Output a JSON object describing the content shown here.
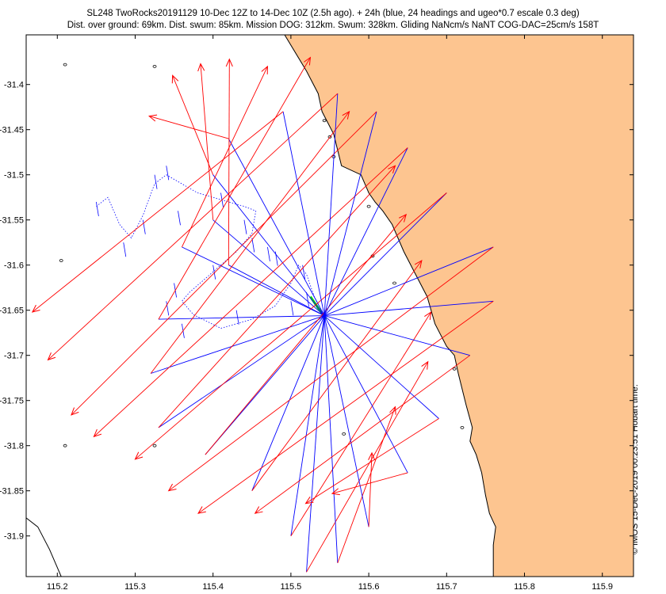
{
  "chart_data": {
    "type": "map",
    "title_line1": "SL248 TwoRocks20191129 10-Dec 12Z to 14-Dec 10Z (2.5h ago). + 24h (blue, 24 headings and ugeo*0.7 escale 0.3 deg)",
    "title_line2": "Dist. over ground: 69km. Dist. swum: 85km. Mission DOG: 312km. Swum: 328km. Gliding NaNcm/s NaNT COG-DAC=25cm/s 158T",
    "credit": "© IMOS 15-Dec-2019 00:23:51 Hobart time.",
    "xlim": [
      115.16,
      115.94
    ],
    "ylim": [
      -31.945,
      -31.345
    ],
    "xticks": [
      115.2,
      115.3,
      115.4,
      115.5,
      115.6,
      115.7,
      115.8,
      115.9
    ],
    "xtick_labels": [
      "115.2",
      "115.3",
      "115.4",
      "115.5",
      "115.6",
      "115.7",
      "115.8",
      "115.9"
    ],
    "yticks": [
      -31.4,
      -31.45,
      -31.5,
      -31.55,
      -31.6,
      -31.65,
      -31.7,
      -31.75,
      -31.8,
      -31.85,
      -31.9
    ],
    "ytick_labels": [
      "-31.4",
      "-31.45",
      "-31.5",
      "-31.55",
      "-31.6",
      "-31.65",
      "-31.7",
      "-31.75",
      "-31.8",
      "-31.85",
      "-31.9"
    ],
    "land_color": "#fdc590",
    "coast_color": "#000000",
    "track_color": "#0000ff",
    "arrow_color": "#ff0000",
    "current_color": "#00dd00",
    "center": [
      115.543,
      -31.656
    ],
    "coastline": [
      [
        115.492,
        -31.345
      ],
      [
        115.52,
        -31.385
      ],
      [
        115.535,
        -31.41
      ],
      [
        115.54,
        -31.43
      ],
      [
        115.555,
        -31.455
      ],
      [
        115.565,
        -31.49
      ],
      [
        115.59,
        -31.5
      ],
      [
        115.6,
        -31.52
      ],
      [
        115.608,
        -31.53
      ],
      [
        115.618,
        -31.54
      ],
      [
        115.63,
        -31.555
      ],
      [
        115.645,
        -31.585
      ],
      [
        115.66,
        -31.61
      ],
      [
        115.675,
        -31.635
      ],
      [
        115.685,
        -31.665
      ],
      [
        115.7,
        -31.69
      ],
      [
        115.71,
        -31.7
      ],
      [
        115.715,
        -31.72
      ],
      [
        115.725,
        -31.755
      ],
      [
        115.733,
        -31.78
      ],
      [
        115.73,
        -31.795
      ],
      [
        115.738,
        -31.81
      ],
      [
        115.745,
        -31.83
      ],
      [
        115.75,
        -31.855
      ],
      [
        115.755,
        -31.875
      ],
      [
        115.763,
        -31.89
      ],
      [
        115.76,
        -31.91
      ],
      [
        115.76,
        -31.945
      ]
    ],
    "west_coast": [
      [
        115.16,
        -31.88
      ],
      [
        115.175,
        -31.89
      ],
      [
        115.19,
        -31.915
      ],
      [
        115.2,
        -31.935
      ],
      [
        115.205,
        -31.945
      ]
    ],
    "headings": [
      [
        115.355,
        -31.54
      ],
      [
        115.325,
        -31.5
      ],
      [
        115.25,
        -31.53
      ],
      [
        115.285,
        -31.575
      ],
      [
        115.31,
        -31.55
      ],
      [
        115.34,
        -31.49
      ],
      [
        115.41,
        -31.52
      ],
      [
        115.45,
        -31.57
      ],
      [
        115.48,
        -31.585
      ],
      [
        115.515,
        -31.6
      ],
      [
        115.52,
        -31.63
      ],
      [
        115.43,
        -31.65
      ],
      [
        115.36,
        -31.665
      ],
      [
        115.34,
        -31.64
      ],
      [
        115.35,
        -31.62
      ],
      [
        115.47,
        -31.58
      ],
      [
        115.4,
        -31.6
      ],
      [
        115.5,
        -31.64
      ],
      [
        115.44,
        -31.55
      ]
    ],
    "glider_track": [
      [
        115.25,
        -31.535
      ],
      [
        115.265,
        -31.525
      ],
      [
        115.28,
        -31.555
      ],
      [
        115.295,
        -31.57
      ],
      [
        115.31,
        -31.545
      ],
      [
        115.325,
        -31.51
      ],
      [
        115.34,
        -31.5
      ],
      [
        115.36,
        -31.51
      ],
      [
        115.38,
        -31.52
      ],
      [
        115.4,
        -31.525
      ],
      [
        115.42,
        -31.53
      ],
      [
        115.44,
        -31.535
      ],
      [
        115.455,
        -31.54
      ],
      [
        115.45,
        -31.565
      ],
      [
        115.43,
        -31.585
      ],
      [
        115.41,
        -31.6
      ],
      [
        115.39,
        -31.615
      ],
      [
        115.37,
        -31.63
      ],
      [
        115.36,
        -31.64
      ],
      [
        115.375,
        -31.655
      ],
      [
        115.41,
        -31.67
      ],
      [
        115.45,
        -31.66
      ],
      [
        115.48,
        -31.645
      ],
      [
        115.5,
        -31.62
      ],
      [
        115.51,
        -31.6
      ],
      [
        115.52,
        -31.61
      ],
      [
        115.53,
        -31.635
      ],
      [
        115.543,
        -31.656
      ]
    ],
    "current_segment": [
      [
        115.525,
        -31.635
      ],
      [
        115.545,
        -31.66
      ]
    ],
    "islands": [
      [
        115.21,
        -31.378
      ],
      [
        115.325,
        -31.38
      ],
      [
        115.205,
        -31.595
      ],
      [
        115.21,
        -31.8
      ],
      [
        115.325,
        -31.8
      ],
      [
        115.568,
        -31.787
      ],
      [
        115.543,
        -31.44
      ],
      [
        115.55,
        -31.458
      ],
      [
        115.555,
        -31.48
      ],
      [
        115.6,
        -31.535
      ],
      [
        115.605,
        -31.59
      ],
      [
        115.633,
        -31.62
      ],
      [
        115.71,
        -31.715
      ],
      [
        115.72,
        -31.78
      ]
    ],
    "rays": [
      [
        115.42,
        -31.46
      ],
      [
        115.4,
        -31.5
      ],
      [
        115.4,
        -31.55
      ],
      [
        115.42,
        -31.6
      ],
      [
        115.36,
        -31.58
      ],
      [
        115.33,
        -31.66
      ],
      [
        115.32,
        -31.72
      ],
      [
        115.33,
        -31.78
      ],
      [
        115.39,
        -31.81
      ],
      [
        115.45,
        -31.85
      ],
      [
        115.5,
        -31.9
      ],
      [
        115.52,
        -31.94
      ],
      [
        115.56,
        -31.93
      ],
      [
        115.6,
        -31.89
      ],
      [
        115.65,
        -31.83
      ],
      [
        115.69,
        -31.77
      ],
      [
        115.73,
        -31.7
      ],
      [
        115.76,
        -31.64
      ],
      [
        115.76,
        -31.58
      ],
      [
        115.7,
        -31.52
      ],
      [
        115.65,
        -31.47
      ],
      [
        115.61,
        -31.43
      ],
      [
        115.56,
        -31.41
      ],
      [
        115.49,
        -31.43
      ]
    ],
    "arrow_tips": [
      [
        115.318,
        -31.435
      ],
      [
        115.348,
        -31.39
      ],
      [
        115.384,
        -31.377
      ],
      [
        115.421,
        -31.372
      ],
      [
        115.47,
        -31.38
      ],
      [
        115.525,
        -31.37
      ],
      [
        115.575,
        -31.43
      ],
      [
        115.634,
        -31.49
      ],
      [
        115.648,
        -31.544
      ],
      [
        115.668,
        -31.595
      ],
      [
        115.68,
        -31.652
      ],
      [
        115.676,
        -31.707
      ],
      [
        115.634,
        -31.757
      ],
      [
        115.604,
        -31.808
      ],
      [
        115.553,
        -31.853
      ],
      [
        115.519,
        -31.864
      ],
      [
        115.454,
        -31.875
      ],
      [
        115.381,
        -31.875
      ],
      [
        115.343,
        -31.85
      ],
      [
        115.3,
        -31.815
      ],
      [
        115.247,
        -31.79
      ],
      [
        115.218,
        -31.766
      ],
      [
        115.188,
        -31.705
      ],
      [
        115.168,
        -31.652
      ]
    ]
  }
}
